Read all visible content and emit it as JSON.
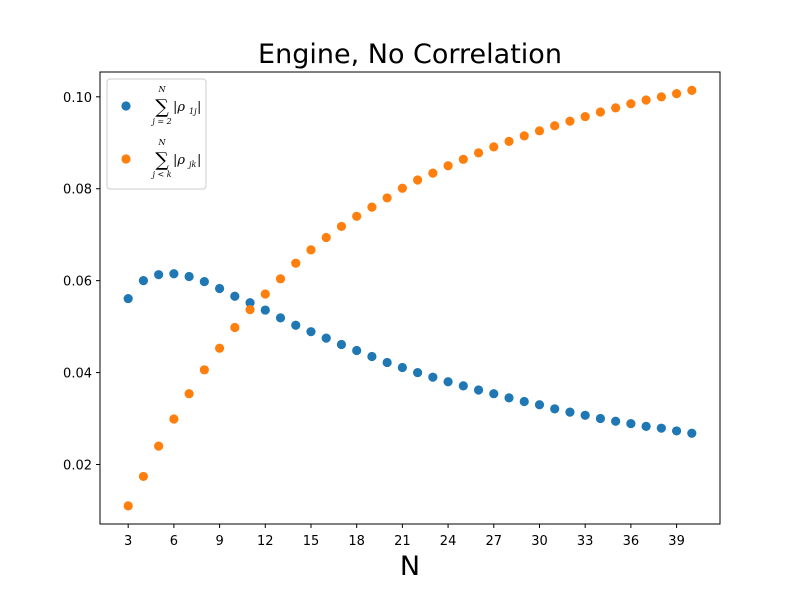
{
  "chart_data": {
    "type": "scatter",
    "title": "Engine, No Correlation",
    "xlabel": "N",
    "ylabel": "",
    "xlim": [
      1.15,
      41.85
    ],
    "ylim": [
      0.00705,
      0.1054
    ],
    "xticks": [
      3,
      6,
      9,
      12,
      15,
      18,
      21,
      24,
      27,
      30,
      33,
      36,
      39
    ],
    "yticks": [
      0.02,
      0.04,
      0.06,
      0.08,
      0.1
    ],
    "ytick_labels": [
      "0.02",
      "0.04",
      "0.06",
      "0.08",
      "0.10"
    ],
    "grid": false,
    "legend_position": "upper-left",
    "x": [
      3,
      4,
      5,
      6,
      7,
      8,
      9,
      10,
      11,
      12,
      13,
      14,
      15,
      16,
      17,
      18,
      19,
      20,
      21,
      22,
      23,
      24,
      25,
      26,
      27,
      28,
      29,
      30,
      31,
      32,
      33,
      34,
      35,
      36,
      37,
      38,
      39,
      40
    ],
    "series": [
      {
        "color": "#1f77b4",
        "legend": {
          "op": "∑",
          "upper": "N",
          "lower": "j = 2",
          "body": "|ρ",
          "sub": "1j",
          "close": "|"
        },
        "values": [
          0.0561,
          0.06,
          0.0613,
          0.0615,
          0.0609,
          0.0598,
          0.0583,
          0.0566,
          0.0552,
          0.0536,
          0.0519,
          0.0503,
          0.0489,
          0.0475,
          0.0461,
          0.0448,
          0.0435,
          0.0422,
          0.0411,
          0.04,
          0.039,
          0.038,
          0.0371,
          0.0362,
          0.0354,
          0.0345,
          0.0337,
          0.033,
          0.0321,
          0.0314,
          0.0307,
          0.03,
          0.0294,
          0.0289,
          0.0283,
          0.0279,
          0.0273,
          0.0268
        ]
      },
      {
        "color": "#ff7f0e",
        "legend": {
          "op": "∑",
          "upper": "N",
          "lower": "j < k",
          "body": "|ρ",
          "sub": "jk",
          "close": "|"
        },
        "values": [
          0.011,
          0.0174,
          0.024,
          0.0299,
          0.0354,
          0.0406,
          0.0453,
          0.0498,
          0.0537,
          0.0571,
          0.0604,
          0.0638,
          0.0667,
          0.0694,
          0.0718,
          0.074,
          0.076,
          0.078,
          0.0801,
          0.0819,
          0.0834,
          0.085,
          0.0864,
          0.0878,
          0.0891,
          0.0903,
          0.0915,
          0.0926,
          0.0937,
          0.0947,
          0.0957,
          0.0967,
          0.0976,
          0.0985,
          0.0993,
          0.1,
          0.1007,
          0.1014
        ]
      }
    ]
  }
}
